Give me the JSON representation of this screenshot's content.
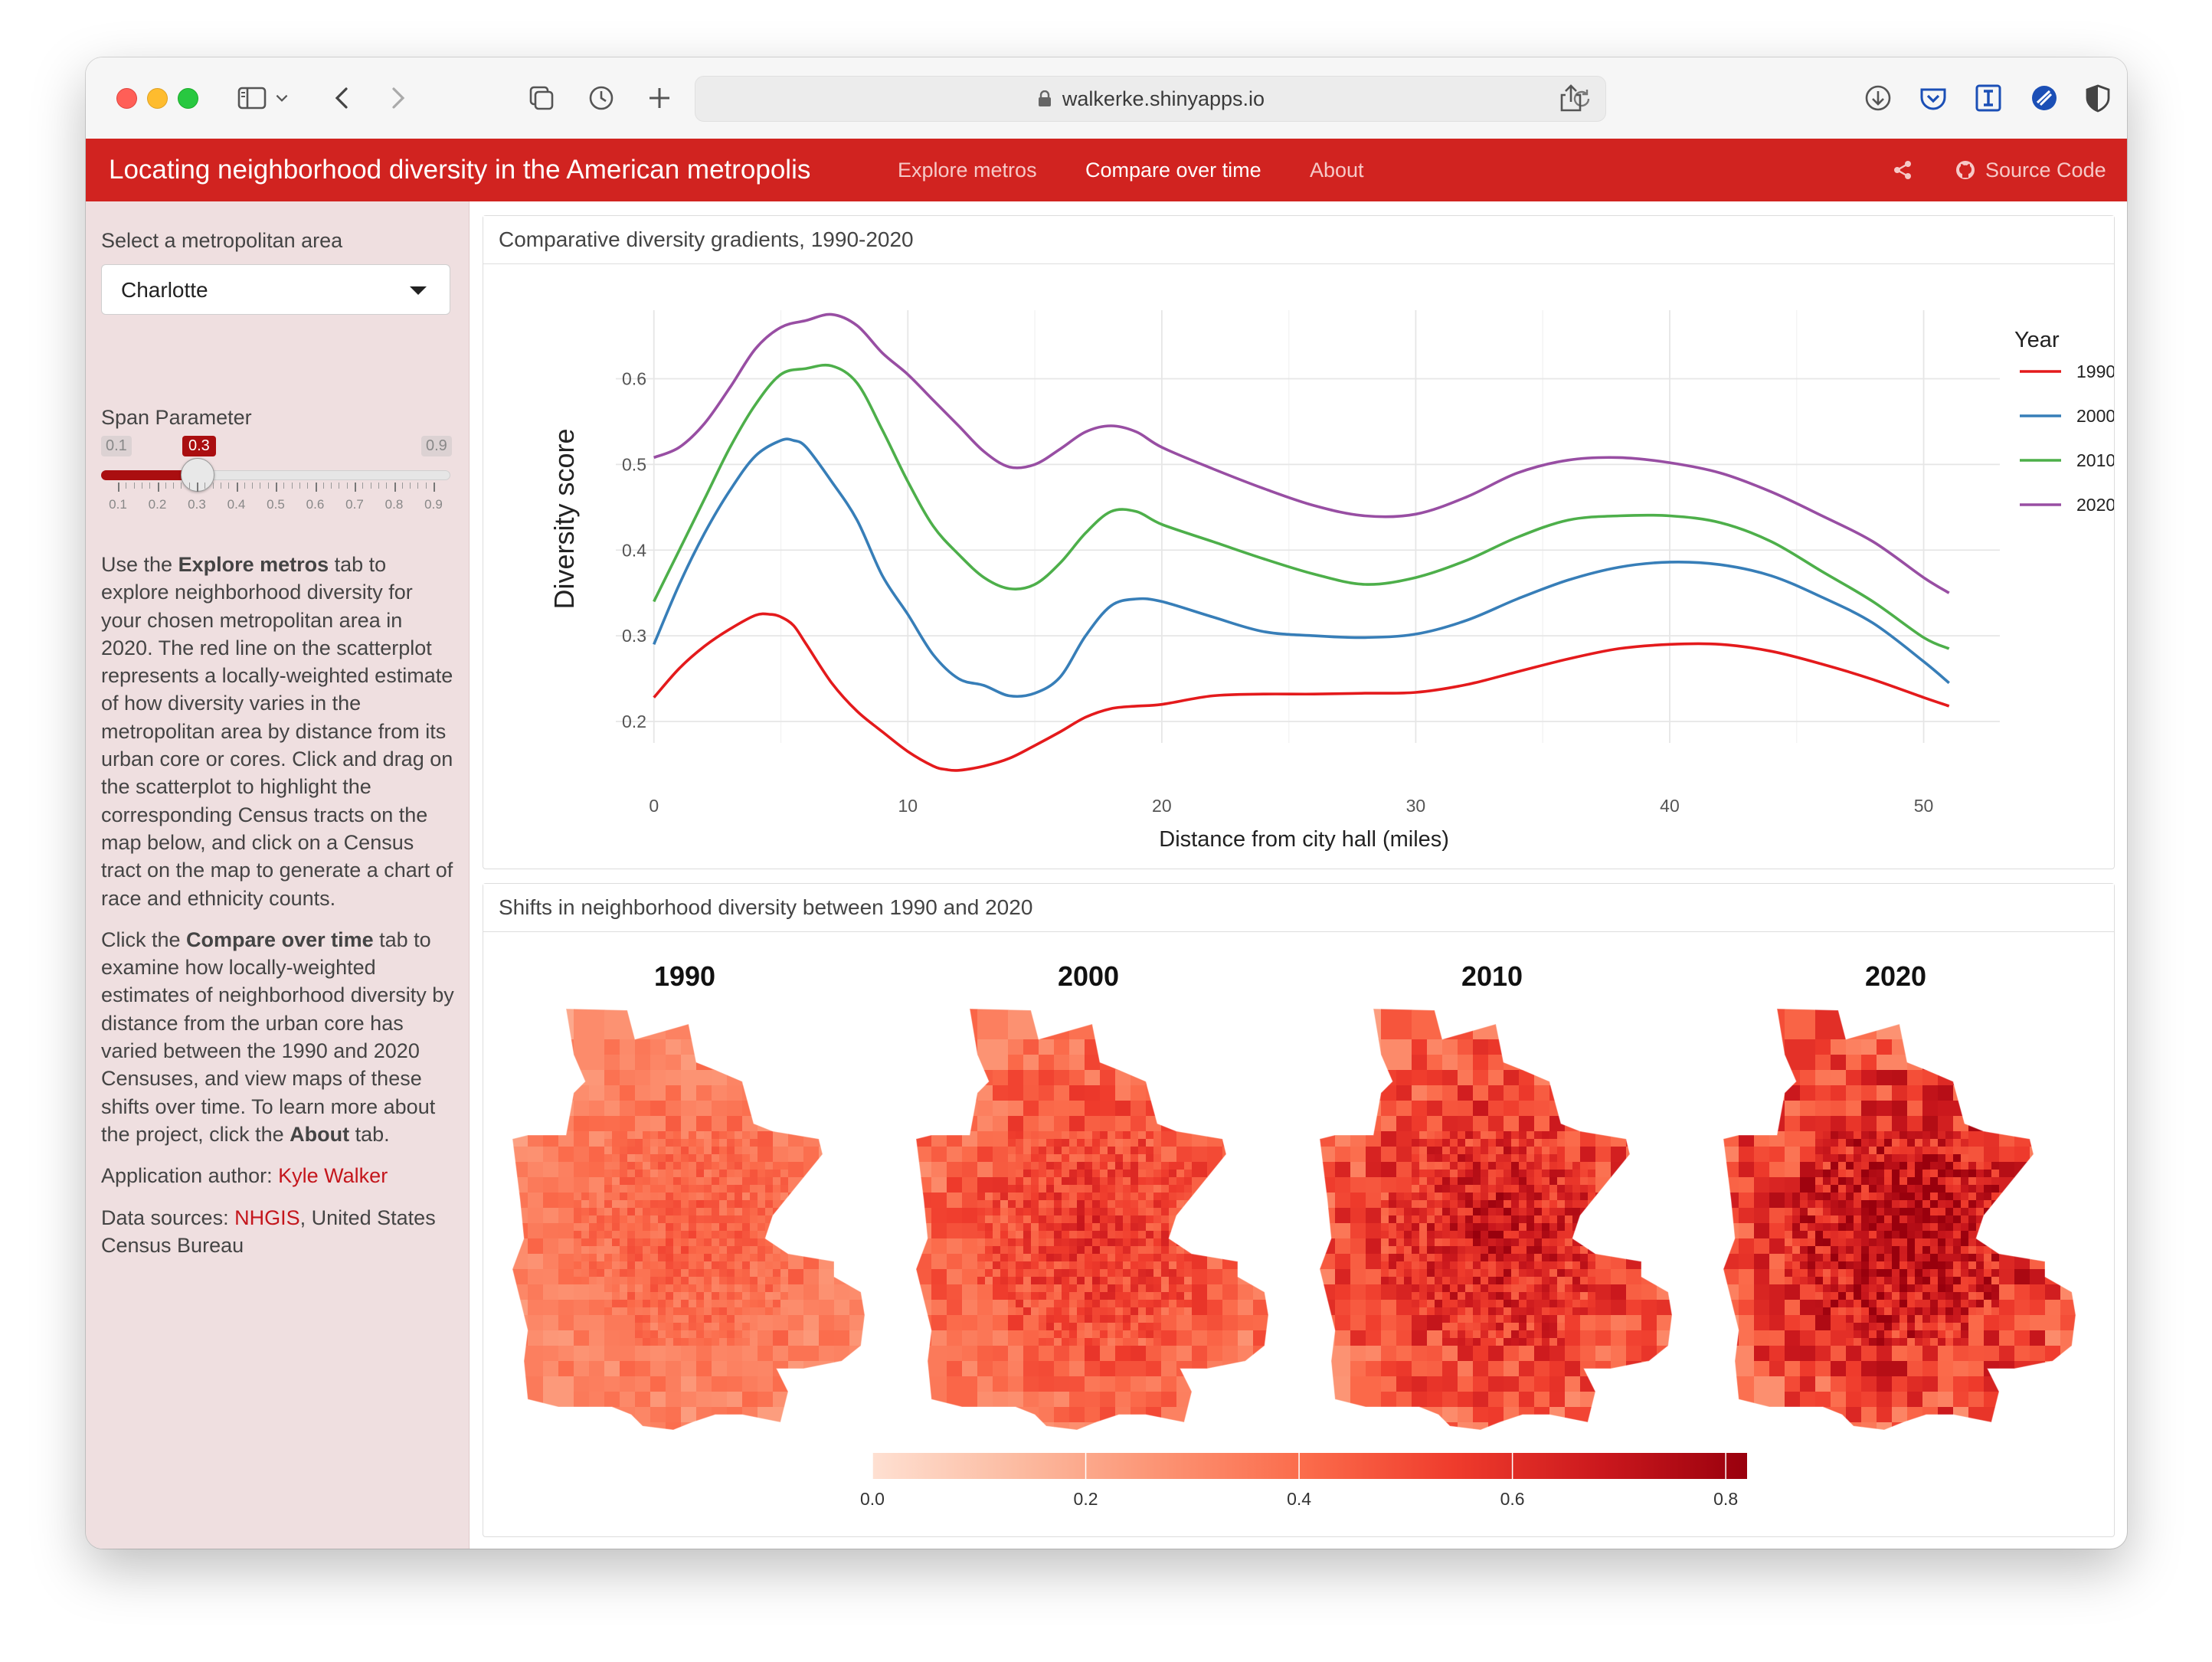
{
  "browser": {
    "url": "walkerke.shinyapps.io",
    "icons": [
      "sidebar-icon",
      "chevron-down-icon",
      "back-icon",
      "forward-icon",
      "tabs-icon",
      "history-icon",
      "new-tab-icon",
      "lock-icon",
      "reload-icon",
      "share-icon",
      "download-icon",
      "pocket-icon",
      "instapaper-icon",
      "safari-extension-icon",
      "shield-icon"
    ]
  },
  "navbar": {
    "brand": "Locating neighborhood diversity in the American metropolis",
    "tabs": [
      {
        "label": "Explore metros",
        "active": false
      },
      {
        "label": "Compare over time",
        "active": true
      },
      {
        "label": "About",
        "active": false
      }
    ],
    "source_code": "Source Code",
    "bg_color": "#d12320"
  },
  "sidebar": {
    "metro_label": "Select a metropolitan area",
    "metro_value": "Charlotte",
    "span_label": "Span Parameter",
    "span_min": "0.1",
    "span_max": "0.9",
    "span_value": "0.3",
    "span_fraction": 0.25,
    "span_ticks": [
      "0.1",
      "0.2",
      "0.3",
      "0.4",
      "0.5",
      "0.6",
      "0.7",
      "0.8",
      "0.9"
    ],
    "para1": {
      "t1": "Use the ",
      "b1": "Explore metros",
      "t2": " tab to explore neighborhood diversity for your chosen metropolitan area in 2020. The red line on the scatterplot represents a locally-weighted estimate of how diversity varies in the metropolitan area by distance from its urban core or cores. Click and drag on the scatterplot to highlight the corresponding Census tracts on the map below, and click on a Census tract on the map to generate a chart of race and ethnicity counts."
    },
    "para2": {
      "t1": "Click the ",
      "b1": "Compare over time",
      "t2": " tab to examine how locally-weighted estimates of neighborhood diversity by distance from the urban core has varied between the 1990 and 2020 Censuses, and view maps of these shifts over time. To learn more about the project, click the ",
      "b2": "About",
      "t3": " tab."
    },
    "author_label": "Application author: ",
    "author_name": "Kyle Walker",
    "sources_label": "Data sources: ",
    "sources_link": "NHGIS",
    "sources_rest": ", United States Census Bureau"
  },
  "gradient_panel": {
    "title": "Comparative diversity gradients, 1990-2020"
  },
  "maps_panel": {
    "title": "Shifts in neighborhood diversity between 1990 and 2020",
    "map_titles": [
      "1990",
      "2000",
      "2010",
      "2020"
    ],
    "legend_ticks": [
      "0.0",
      "0.2",
      "0.4",
      "0.6",
      "0.8"
    ],
    "legend_range": [
      0,
      0.82
    ],
    "legend_colors": [
      "#fee0d2",
      "#fcbba1",
      "#fc9272",
      "#fb6a4a",
      "#ef3b2c",
      "#cb181d",
      "#99000d"
    ]
  },
  "chart_data": {
    "type": "line",
    "xlabel": "Distance from city hall (miles)",
    "ylabel": "Diversity score",
    "legend_title": "Year",
    "legend_position": "right",
    "grid": true,
    "xlim": [
      -1.5,
      53
    ],
    "ylim": [
      0.175,
      0.68
    ],
    "x_ticks": [
      0,
      10,
      20,
      30,
      40,
      50
    ],
    "y_ticks": [
      0.2,
      0.3,
      0.4,
      0.5,
      0.6
    ],
    "series": [
      {
        "name": "1990",
        "color": "#e41a1c",
        "points": [
          [
            0,
            0.228
          ],
          [
            1,
            0.262
          ],
          [
            2,
            0.288
          ],
          [
            3,
            0.308
          ],
          [
            4,
            0.324
          ],
          [
            4.6,
            0.325
          ],
          [
            5,
            0.322
          ],
          [
            5.5,
            0.312
          ],
          [
            6,
            0.29
          ],
          [
            7,
            0.245
          ],
          [
            8,
            0.212
          ],
          [
            9,
            0.188
          ],
          [
            10,
            0.165
          ],
          [
            11,
            0.148
          ],
          [
            11.5,
            0.144
          ],
          [
            12,
            0.143
          ],
          [
            13,
            0.148
          ],
          [
            14,
            0.157
          ],
          [
            15,
            0.172
          ],
          [
            16,
            0.188
          ],
          [
            17,
            0.205
          ],
          [
            18,
            0.215
          ],
          [
            19,
            0.218
          ],
          [
            20,
            0.22
          ],
          [
            22,
            0.23
          ],
          [
            24,
            0.232
          ],
          [
            26,
            0.232
          ],
          [
            28,
            0.233
          ],
          [
            30,
            0.234
          ],
          [
            32,
            0.243
          ],
          [
            34,
            0.258
          ],
          [
            36,
            0.273
          ],
          [
            38,
            0.285
          ],
          [
            40,
            0.29
          ],
          [
            42,
            0.29
          ],
          [
            44,
            0.282
          ],
          [
            46,
            0.267
          ],
          [
            48,
            0.249
          ],
          [
            50,
            0.228
          ],
          [
            51,
            0.218
          ]
        ]
      },
      {
        "name": "2000",
        "color": "#377eb8",
        "points": [
          [
            0,
            0.29
          ],
          [
            1,
            0.36
          ],
          [
            2,
            0.42
          ],
          [
            3,
            0.47
          ],
          [
            4,
            0.51
          ],
          [
            5,
            0.528
          ],
          [
            5.5,
            0.528
          ],
          [
            6,
            0.52
          ],
          [
            7,
            0.48
          ],
          [
            8,
            0.435
          ],
          [
            9,
            0.37
          ],
          [
            10,
            0.325
          ],
          [
            11,
            0.278
          ],
          [
            12,
            0.25
          ],
          [
            13,
            0.242
          ],
          [
            14,
            0.23
          ],
          [
            15,
            0.233
          ],
          [
            16,
            0.252
          ],
          [
            17,
            0.3
          ],
          [
            18,
            0.335
          ],
          [
            19,
            0.343
          ],
          [
            20,
            0.34
          ],
          [
            22,
            0.322
          ],
          [
            24,
            0.305
          ],
          [
            26,
            0.3
          ],
          [
            28,
            0.298
          ],
          [
            30,
            0.302
          ],
          [
            32,
            0.318
          ],
          [
            34,
            0.343
          ],
          [
            36,
            0.365
          ],
          [
            38,
            0.38
          ],
          [
            40,
            0.386
          ],
          [
            42,
            0.383
          ],
          [
            44,
            0.37
          ],
          [
            46,
            0.345
          ],
          [
            48,
            0.315
          ],
          [
            50,
            0.27
          ],
          [
            51,
            0.245
          ]
        ]
      },
      {
        "name": "2010",
        "color": "#4daf4a",
        "points": [
          [
            0,
            0.34
          ],
          [
            1,
            0.4
          ],
          [
            2,
            0.46
          ],
          [
            3,
            0.52
          ],
          [
            4,
            0.57
          ],
          [
            5,
            0.605
          ],
          [
            6,
            0.612
          ],
          [
            7,
            0.615
          ],
          [
            8,
            0.595
          ],
          [
            9,
            0.54
          ],
          [
            10,
            0.48
          ],
          [
            11,
            0.428
          ],
          [
            12,
            0.395
          ],
          [
            13,
            0.368
          ],
          [
            14,
            0.355
          ],
          [
            15,
            0.36
          ],
          [
            16,
            0.385
          ],
          [
            17,
            0.42
          ],
          [
            18,
            0.445
          ],
          [
            19,
            0.445
          ],
          [
            20,
            0.43
          ],
          [
            22,
            0.41
          ],
          [
            24,
            0.39
          ],
          [
            26,
            0.372
          ],
          [
            28,
            0.36
          ],
          [
            30,
            0.368
          ],
          [
            32,
            0.388
          ],
          [
            34,
            0.415
          ],
          [
            36,
            0.435
          ],
          [
            38,
            0.44
          ],
          [
            40,
            0.44
          ],
          [
            42,
            0.432
          ],
          [
            44,
            0.41
          ],
          [
            46,
            0.375
          ],
          [
            48,
            0.34
          ],
          [
            50,
            0.298
          ],
          [
            51,
            0.285
          ]
        ]
      },
      {
        "name": "2020",
        "color": "#984ea3",
        "points": [
          [
            0,
            0.508
          ],
          [
            1,
            0.52
          ],
          [
            2,
            0.548
          ],
          [
            3,
            0.59
          ],
          [
            4,
            0.635
          ],
          [
            5,
            0.66
          ],
          [
            6,
            0.668
          ],
          [
            7,
            0.675
          ],
          [
            8,
            0.662
          ],
          [
            9,
            0.63
          ],
          [
            10,
            0.605
          ],
          [
            11,
            0.575
          ],
          [
            12,
            0.545
          ],
          [
            13,
            0.515
          ],
          [
            14,
            0.497
          ],
          [
            15,
            0.5
          ],
          [
            16,
            0.518
          ],
          [
            17,
            0.538
          ],
          [
            18,
            0.545
          ],
          [
            19,
            0.538
          ],
          [
            20,
            0.52
          ],
          [
            22,
            0.495
          ],
          [
            24,
            0.472
          ],
          [
            26,
            0.452
          ],
          [
            28,
            0.44
          ],
          [
            30,
            0.442
          ],
          [
            32,
            0.462
          ],
          [
            34,
            0.49
          ],
          [
            36,
            0.505
          ],
          [
            38,
            0.508
          ],
          [
            40,
            0.502
          ],
          [
            42,
            0.49
          ],
          [
            44,
            0.468
          ],
          [
            46,
            0.44
          ],
          [
            48,
            0.41
          ],
          [
            50,
            0.368
          ],
          [
            51,
            0.35
          ]
        ]
      }
    ]
  }
}
